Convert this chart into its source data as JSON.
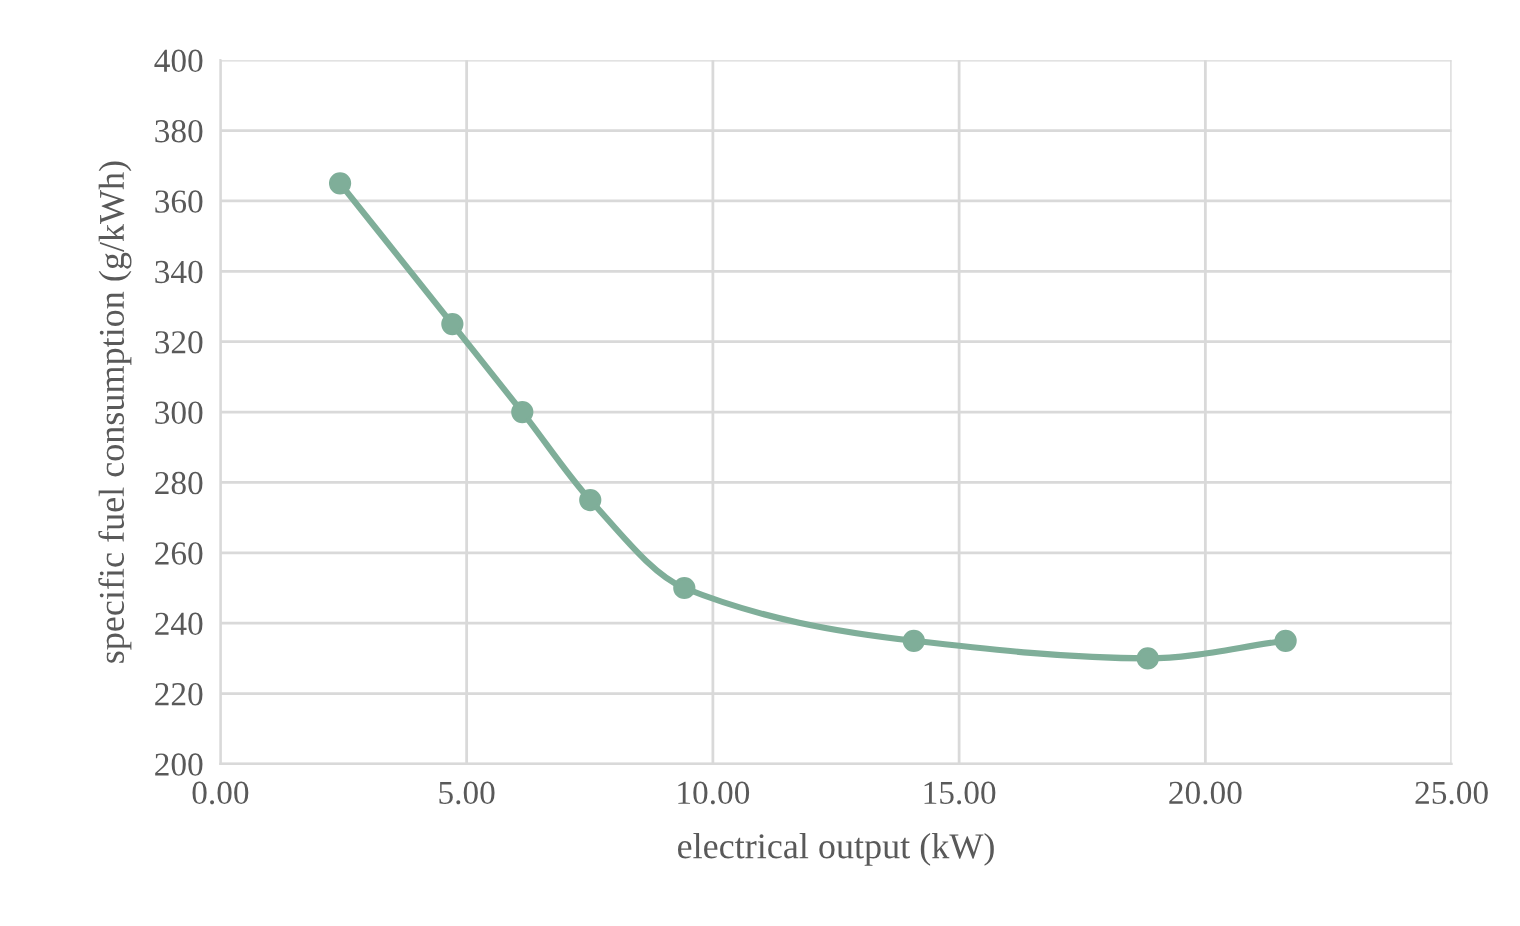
{
  "chart_data": {
    "type": "line",
    "xlabel": "electrical output (kW)",
    "ylabel": "specific fuel consumption (g/kWh)",
    "x": [
      2.43,
      4.71,
      6.13,
      7.51,
      9.42,
      14.08,
      18.83,
      21.63
    ],
    "series": [
      {
        "color": "#7fae99",
        "values": [
          365,
          325,
          300,
          275,
          250,
          235,
          230,
          235
        ]
      }
    ],
    "xlim": [
      0,
      25
    ],
    "xticks": [
      {
        "value": 0,
        "label": "0.00"
      },
      {
        "value": 5,
        "label": "5.00"
      },
      {
        "value": 10,
        "label": "10.00"
      },
      {
        "value": 15,
        "label": "15.00"
      },
      {
        "value": 20,
        "label": "20.00"
      },
      {
        "value": 25,
        "label": "25.00"
      }
    ],
    "ylim": [
      200,
      400
    ],
    "yticks": [
      200,
      220,
      240,
      260,
      280,
      300,
      320,
      340,
      360,
      380,
      400
    ],
    "grid": true,
    "marker": "circle",
    "line_style": "solid"
  }
}
